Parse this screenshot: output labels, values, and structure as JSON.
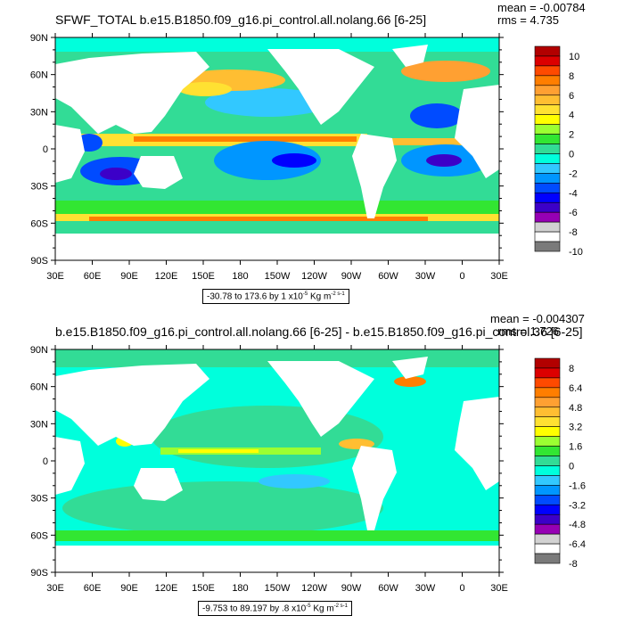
{
  "panels": [
    {
      "title": "SFWF_TOTAL b.e15.B1850.f09_g16.pi_control.all.nolang.66 [6-25]",
      "mean_text": "mean = -0.00784",
      "rms_text": "rms = 4.735",
      "info_range": "-30.78 to 173.6 by 1 x10",
      "info_exp": "-5",
      "info_unit": " Kg m",
      "info_unit_exp": "-2 s-1",
      "lat_ticks": [
        "90N",
        "60N",
        "30N",
        "0",
        "30S",
        "60S",
        "90S"
      ],
      "lon_ticks": [
        "30E",
        "60E",
        "90E",
        "120E",
        "150E",
        "180",
        "150W",
        "120W",
        "90W",
        "60W",
        "30W",
        "0",
        "30E"
      ],
      "colorbar_labels": [
        "10",
        "8",
        "6",
        "4",
        "2",
        "0",
        "-2",
        "-4",
        "-6",
        "-8",
        "-10"
      ],
      "colorbar_colors": [
        "#b20000",
        "#dc0000",
        "#ff4a00",
        "#ff7e00",
        "#ffa032",
        "#ffbe32",
        "#ffe132",
        "#ffff00",
        "#9bff32",
        "#32e632",
        "#32dc96",
        "#00ffdc",
        "#32c8ff",
        "#0096ff",
        "#004bff",
        "#0000ff",
        "#3c00c8",
        "#9600b4",
        "#d2d2d2",
        "#ffffff",
        "#7a7a7a"
      ]
    },
    {
      "title": "b.e15.B1850.f09_g16.pi_control.all.nolang.66 [6-25] - b.e15.B1850.f09_g16.pi_control.36 [6-25]",
      "mean_text": "mean = -0.004307",
      "rms_text": "rms = 1.726",
      "info_range": "-9.753 to 89.197 by .8 x10",
      "info_exp": "-5",
      "info_unit": " Kg m",
      "info_unit_exp": "-2 s-1",
      "lat_ticks": [
        "90N",
        "60N",
        "30N",
        "0",
        "30S",
        "60S",
        "90S"
      ],
      "lon_ticks": [
        "30E",
        "60E",
        "90E",
        "120E",
        "150E",
        "180",
        "150W",
        "120W",
        "90W",
        "60W",
        "30W",
        "0",
        "30E"
      ],
      "colorbar_labels": [
        "8",
        "6.4",
        "4.8",
        "3.2",
        "1.6",
        "0",
        "-1.6",
        "-3.2",
        "-4.8",
        "-6.4",
        "-8"
      ],
      "colorbar_colors": [
        "#b20000",
        "#dc0000",
        "#ff4a00",
        "#ff7e00",
        "#ffa032",
        "#ffbe32",
        "#ffe132",
        "#ffff00",
        "#9bff32",
        "#32e632",
        "#32dc96",
        "#00ffdc",
        "#32c8ff",
        "#0096ff",
        "#004bff",
        "#0000ff",
        "#3c00c8",
        "#9600b4",
        "#d2d2d2",
        "#ffffff",
        "#7a7a7a"
      ]
    }
  ],
  "chart_data": [
    {
      "type": "heatmap",
      "title": "SFWF_TOTAL b.e15.B1850.f09_g16.pi_control.all.nolang.66 [6-25]",
      "x_ticks": [
        "30E",
        "60E",
        "90E",
        "120E",
        "150E",
        "180",
        "150W",
        "120W",
        "90W",
        "60W",
        "30W",
        "0",
        "30E"
      ],
      "y_ticks": [
        "90N",
        "60N",
        "30N",
        "0",
        "30S",
        "60S",
        "90S"
      ],
      "xlim": [
        30,
        390
      ],
      "ylim": [
        -90,
        90
      ],
      "color_levels": [
        -10,
        -9,
        -8,
        -7,
        -6,
        -5,
        -4,
        -3,
        -2,
        -1,
        0,
        1,
        2,
        3,
        4,
        5,
        6,
        7,
        8,
        9,
        10
      ],
      "mean": -0.00784,
      "rms": 4.735,
      "contour_info": "-30.78 to 173.6 by 1 x10^-5 Kg m^-2 s^-1"
    },
    {
      "type": "heatmap",
      "title": "b.e15.B1850.f09_g16.pi_control.all.nolang.66 [6-25] - b.e15.B1850.f09_g16.pi_control.36 [6-25]",
      "x_ticks": [
        "30E",
        "60E",
        "90E",
        "120E",
        "150E",
        "180",
        "150W",
        "120W",
        "90W",
        "60W",
        "30W",
        "0",
        "30E"
      ],
      "y_ticks": [
        "90N",
        "60N",
        "30N",
        "0",
        "30S",
        "60S",
        "90S"
      ],
      "xlim": [
        30,
        390
      ],
      "ylim": [
        -90,
        90
      ],
      "color_levels": [
        -8,
        -7.2,
        -6.4,
        -5.6,
        -4.8,
        -4,
        -3.2,
        -2.4,
        -1.6,
        -0.8,
        0,
        0.8,
        1.6,
        2.4,
        3.2,
        4,
        4.8,
        5.6,
        6.4,
        7.2,
        8
      ],
      "mean": -0.004307,
      "rms": 1.726,
      "contour_info": "-9.753 to 89.197 by .8 x10^-5 Kg m^-2 s^-1"
    }
  ]
}
